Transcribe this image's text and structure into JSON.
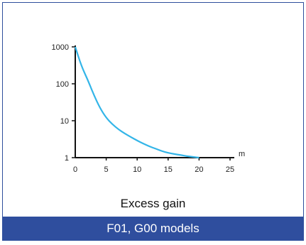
{
  "colors": {
    "curve": "#33b5e8",
    "axis": "#111111",
    "footer_bg": "#2f4e9e",
    "border": "#2e4f9c"
  },
  "caption": "Excess gain",
  "footer": "F01, G00 models",
  "chart_data": {
    "type": "line",
    "title": "",
    "xlabel": "",
    "x_unit_label": "m",
    "ylabel": "",
    "x_scale": "linear",
    "y_scale": "log",
    "xlim": [
      0,
      25
    ],
    "ylim": [
      1,
      1000
    ],
    "x_ticks": [
      0,
      5,
      10,
      15,
      20,
      25
    ],
    "x_tick_labels": [
      "0",
      "5",
      "10",
      "15",
      "20",
      "25"
    ],
    "y_ticks": [
      1,
      10,
      100,
      1000
    ],
    "y_tick_labels": [
      "1",
      "10",
      "100",
      "1000"
    ],
    "grid": false,
    "legend": "none",
    "series": [
      {
        "x": [
          0,
          1,
          2,
          3,
          4,
          5,
          6,
          7,
          8,
          9,
          10,
          11,
          12,
          13,
          14,
          15,
          16,
          17,
          18,
          19,
          20
        ],
        "y": [
          1000,
          300,
          130,
          50,
          22,
          12,
          8,
          5.8,
          4.5,
          3.6,
          2.9,
          2.4,
          2.0,
          1.75,
          1.5,
          1.35,
          1.25,
          1.18,
          1.1,
          1.05,
          1.0
        ]
      }
    ]
  }
}
